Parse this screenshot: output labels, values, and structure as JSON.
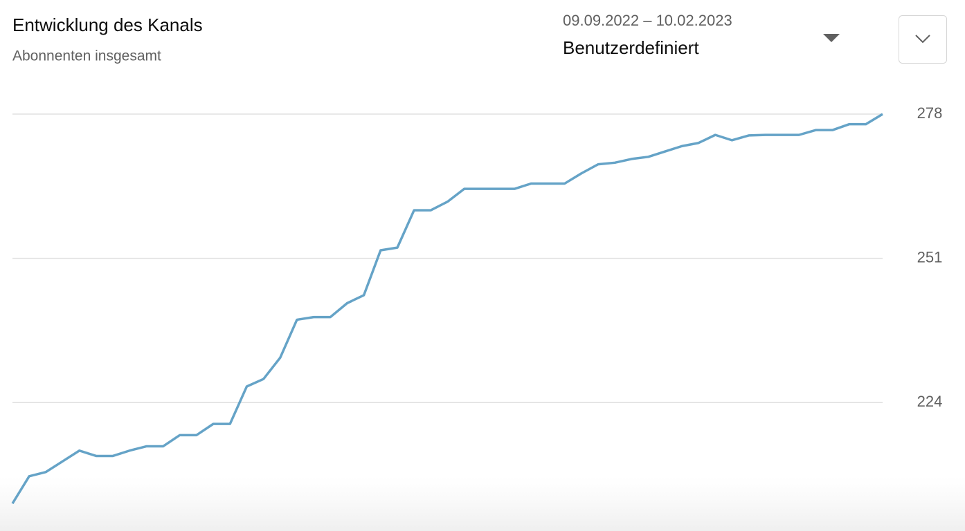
{
  "chart_data": {
    "type": "line",
    "title": "Entwicklung des Kanals",
    "subtitle": "Abonnenten insgesamt",
    "date_range": "09.09.2022 – 10.02.2023",
    "period": "Benutzerdefiniert",
    "color": "#65a3c7",
    "ylim": [
      205,
      278
    ],
    "yticks": [
      224,
      251,
      278
    ],
    "grid": true,
    "values": [
      205.1,
      210.2,
      211,
      213,
      215,
      214,
      214,
      215,
      215.8,
      215.8,
      217.9,
      217.9,
      220,
      220,
      227,
      228.4,
      232.4,
      239.5,
      240,
      240,
      242.6,
      244.1,
      252.5,
      253,
      260,
      260,
      261.6,
      264,
      264,
      264,
      264,
      265,
      265,
      265,
      266.9,
      268.6,
      268.9,
      269.6,
      270,
      271,
      272,
      272.6,
      274.1,
      273.1,
      274,
      274.1,
      274.1,
      274.1,
      275,
      275,
      276.1,
      276.1,
      278
    ]
  }
}
